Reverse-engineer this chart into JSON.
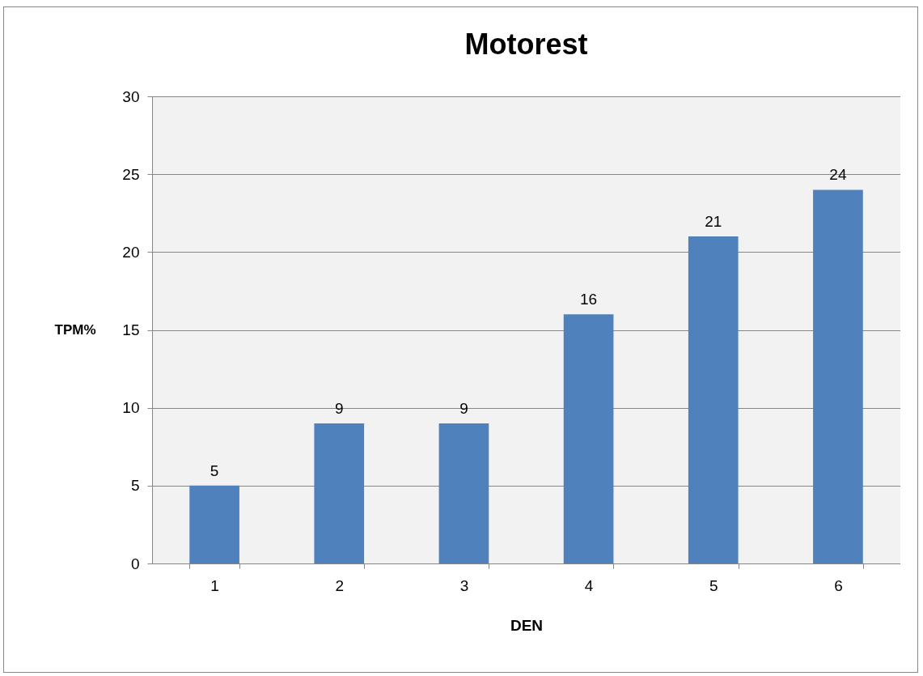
{
  "chart_data": {
    "type": "bar",
    "title": "Motorest",
    "xlabel": "DEN",
    "ylabel": "TPM%",
    "categories": [
      "1",
      "2",
      "3",
      "4",
      "5",
      "6"
    ],
    "values": [
      5,
      9,
      9,
      16,
      21,
      24
    ],
    "color": "#4f81bd",
    "ylim": [
      0,
      30
    ],
    "yticks": [
      0,
      5,
      10,
      15,
      20,
      25,
      30
    ],
    "grid": "y",
    "data_labels": true
  }
}
